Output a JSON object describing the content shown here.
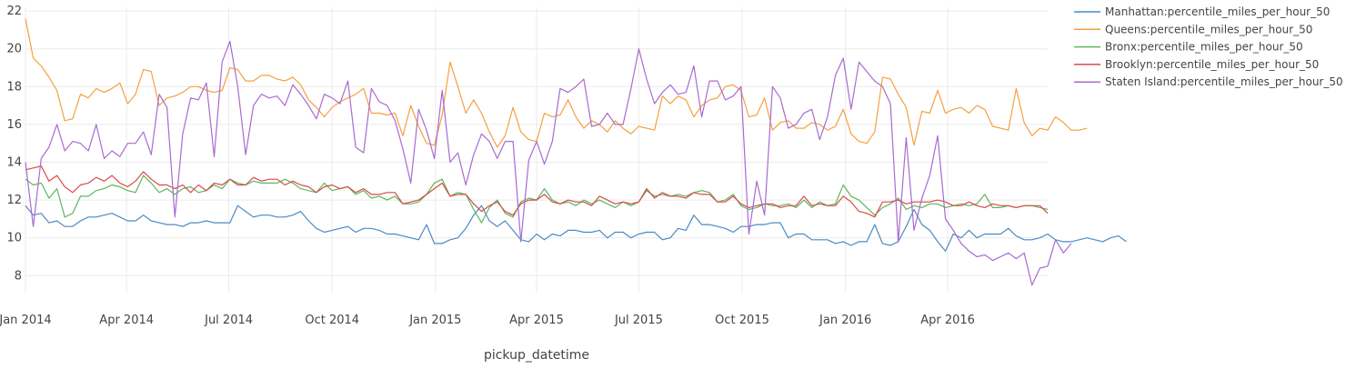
{
  "chart_data": {
    "type": "line",
    "title": "",
    "xlabel": "pickup_datetime",
    "ylabel": "",
    "x_range": [
      "2014-01-01",
      "2016-06-29"
    ],
    "ylim": [
      7.1,
      22.2
    ],
    "grid": true,
    "legend_position": "top-right",
    "x_ticks": [
      {
        "date": "2014-01-01",
        "label": "Jan 2014"
      },
      {
        "date": "2014-04-01",
        "label": "Apr 2014"
      },
      {
        "date": "2014-07-01",
        "label": "Jul 2014"
      },
      {
        "date": "2014-10-01",
        "label": "Oct 2014"
      },
      {
        "date": "2015-01-01",
        "label": "Jan 2015"
      },
      {
        "date": "2015-04-01",
        "label": "Apr 2015"
      },
      {
        "date": "2015-07-01",
        "label": "Jul 2015"
      },
      {
        "date": "2015-10-01",
        "label": "Oct 2015"
      },
      {
        "date": "2016-01-01",
        "label": "Jan 2016"
      },
      {
        "date": "2016-04-01",
        "label": "Apr 2016"
      }
    ],
    "y_ticks": [
      8,
      10,
      12,
      14,
      16,
      18,
      20,
      22
    ],
    "x_start": "2014-01-01",
    "x_step_days": 7,
    "series": [
      {
        "name": "Manhattan:percentile_miles_per_hour_50",
        "color": "#4a8ac4",
        "values": [
          11.7,
          11.2,
          11.3,
          10.8,
          10.9,
          10.6,
          10.6,
          10.9,
          11.1,
          11.1,
          11.2,
          11.3,
          11.1,
          10.9,
          10.9,
          11.2,
          10.9,
          10.8,
          10.7,
          10.7,
          10.6,
          10.8,
          10.8,
          10.9,
          10.8,
          10.8,
          10.8,
          11.7,
          11.4,
          11.1,
          11.2,
          11.2,
          11.1,
          11.1,
          11.2,
          11.4,
          10.9,
          10.5,
          10.3,
          10.4,
          10.5,
          10.6,
          10.3,
          10.5,
          10.5,
          10.4,
          10.2,
          10.2,
          10.1,
          10.0,
          9.9,
          10.7,
          9.7,
          9.7,
          9.9,
          10.0,
          10.5,
          11.2,
          11.7,
          10.9,
          10.6,
          10.9,
          10.4,
          9.9,
          9.8,
          10.2,
          9.9,
          10.2,
          10.1,
          10.4,
          10.4,
          10.3,
          10.3,
          10.4,
          10.0,
          10.3,
          10.3,
          10.0,
          10.2,
          10.3,
          10.3,
          9.9,
          10.0,
          10.5,
          10.4,
          11.2,
          10.7,
          10.7,
          10.6,
          10.5,
          10.3,
          10.6,
          10.6,
          10.7,
          10.7,
          10.8,
          10.8,
          10.0,
          10.2,
          10.2,
          9.9,
          9.9,
          9.9,
          9.7,
          9.8,
          9.6,
          9.8,
          9.8,
          10.7,
          9.7,
          9.6,
          9.8,
          10.6,
          11.5,
          10.7,
          10.4,
          9.8,
          9.3,
          10.2,
          10.0,
          10.4,
          10.0,
          10.2,
          10.2,
          10.2,
          10.5,
          10.1,
          9.9,
          9.9,
          10.0,
          10.2,
          9.9,
          9.8,
          9.8,
          9.9,
          10.0,
          9.9,
          9.8,
          10.0,
          10.1,
          9.8
        ]
      },
      {
        "name": "Queens:percentile_miles_per_hour_50",
        "color": "#f5a040",
        "values": [
          21.6,
          19.5,
          19.1,
          18.5,
          17.8,
          16.2,
          16.3,
          17.6,
          17.4,
          17.9,
          17.7,
          17.9,
          18.2,
          17.1,
          17.6,
          18.9,
          18.8,
          17.0,
          17.4,
          17.5,
          17.7,
          18.0,
          18.0,
          17.8,
          17.7,
          17.8,
          19.0,
          18.9,
          18.3,
          18.3,
          18.6,
          18.6,
          18.4,
          18.3,
          18.5,
          18.1,
          17.3,
          16.9,
          16.4,
          16.9,
          17.2,
          17.4,
          17.6,
          17.9,
          16.6,
          16.6,
          16.5,
          16.6,
          15.4,
          17.0,
          15.9,
          15.0,
          14.9,
          16.5,
          19.3,
          18.0,
          16.6,
          17.3,
          16.6,
          15.6,
          14.8,
          15.4,
          16.9,
          15.6,
          15.2,
          15.1,
          16.6,
          16.4,
          16.5,
          17.3,
          16.4,
          15.8,
          16.2,
          16.0,
          15.6,
          16.2,
          15.8,
          15.5,
          15.9,
          15.8,
          15.7,
          17.5,
          17.1,
          17.5,
          17.3,
          16.4,
          17.0,
          17.3,
          17.4,
          18.0,
          18.1,
          17.8,
          16.4,
          16.5,
          17.4,
          15.7,
          16.1,
          16.2,
          15.8,
          15.8,
          16.1,
          16.0,
          15.7,
          15.9,
          16.8,
          15.5,
          15.1,
          15.0,
          15.6,
          18.5,
          18.4,
          17.6,
          16.9,
          14.9,
          16.7,
          16.6,
          17.8,
          16.6,
          16.8,
          16.9,
          16.6,
          17.0,
          16.8,
          15.9,
          15.8,
          15.7,
          17.9,
          16.1,
          15.4,
          15.8,
          15.7,
          16.4,
          16.1,
          15.7,
          15.7,
          15.8
        ]
      },
      {
        "name": "Bronx:percentile_miles_per_hour_50",
        "color": "#5bb85b",
        "values": [
          13.1,
          12.8,
          12.9,
          12.1,
          12.6,
          11.1,
          11.3,
          12.2,
          12.2,
          12.5,
          12.6,
          12.8,
          12.7,
          12.5,
          12.4,
          13.3,
          12.9,
          12.4,
          12.6,
          12.3,
          12.6,
          12.7,
          12.4,
          12.5,
          12.8,
          12.6,
          13.1,
          12.9,
          12.8,
          13.0,
          12.9,
          12.9,
          12.9,
          13.1,
          12.9,
          12.6,
          12.5,
          12.4,
          12.9,
          12.5,
          12.6,
          12.7,
          12.3,
          12.5,
          12.1,
          12.2,
          12.0,
          12.2,
          11.8,
          11.8,
          11.9,
          12.3,
          12.9,
          13.1,
          12.2,
          12.4,
          12.3,
          11.5,
          10.8,
          11.6,
          12.0,
          11.3,
          11.1,
          11.9,
          12.1,
          12.0,
          12.6,
          12.0,
          11.8,
          11.9,
          11.7,
          12.0,
          11.8,
          12.0,
          11.8,
          11.6,
          11.9,
          11.7,
          11.9,
          12.5,
          12.2,
          12.3,
          12.2,
          12.3,
          12.2,
          12.4,
          12.5,
          12.4,
          11.9,
          12.0,
          12.3,
          11.7,
          11.5,
          11.6,
          11.8,
          11.7,
          11.7,
          11.8,
          11.6,
          12.0,
          11.6,
          11.9,
          11.7,
          11.8,
          12.8,
          12.2,
          12.0,
          11.6,
          11.2,
          11.6,
          11.8,
          12.1,
          11.5,
          11.7,
          11.6,
          11.8,
          11.8,
          11.6,
          11.7,
          11.8,
          11.7,
          11.8,
          12.3,
          11.6,
          11.6,
          11.7,
          11.6,
          11.7,
          11.7,
          11.6,
          11.5
        ]
      },
      {
        "name": "Brooklyn:percentile_miles_per_hour_50",
        "color": "#d94a4a",
        "values": [
          13.6,
          13.7,
          13.8,
          13.0,
          13.3,
          12.7,
          12.4,
          12.8,
          12.9,
          13.2,
          13.0,
          13.3,
          12.9,
          12.7,
          13.0,
          13.5,
          13.1,
          12.8,
          12.8,
          12.6,
          12.8,
          12.4,
          12.8,
          12.5,
          12.9,
          12.8,
          13.1,
          12.8,
          12.8,
          13.2,
          13.0,
          13.1,
          13.1,
          12.8,
          13.0,
          12.8,
          12.7,
          12.4,
          12.7,
          12.8,
          12.6,
          12.7,
          12.4,
          12.6,
          12.3,
          12.3,
          12.4,
          12.4,
          11.8,
          11.9,
          12.0,
          12.3,
          12.6,
          12.9,
          12.2,
          12.3,
          12.3,
          11.8,
          11.4,
          11.7,
          11.9,
          11.4,
          11.2,
          11.8,
          12.0,
          12.0,
          12.3,
          11.9,
          11.8,
          12.0,
          11.9,
          11.9,
          11.7,
          12.2,
          12.0,
          11.8,
          11.9,
          11.8,
          11.9,
          12.6,
          12.1,
          12.4,
          12.2,
          12.2,
          12.1,
          12.4,
          12.3,
          12.3,
          11.9,
          11.9,
          12.2,
          11.8,
          11.6,
          11.7,
          11.8,
          11.8,
          11.6,
          11.7,
          11.7,
          12.2,
          11.7,
          11.8,
          11.7,
          11.7,
          12.2,
          11.9,
          11.4,
          11.3,
          11.1,
          11.9,
          11.9,
          12.0,
          11.8,
          11.9,
          11.9,
          11.9,
          12.0,
          11.9,
          11.7,
          11.7,
          11.9,
          11.7,
          11.6,
          11.8,
          11.7,
          11.7,
          11.6,
          11.7,
          11.7,
          11.7,
          11.3
        ]
      },
      {
        "name": "Staten Island:percentile_miles_per_hour_50",
        "color": "#a86bd0",
        "values": [
          14.0,
          10.6,
          14.2,
          14.8,
          16.0,
          14.6,
          15.1,
          15.0,
          14.6,
          16.0,
          14.2,
          14.6,
          14.3,
          15.0,
          15.0,
          15.6,
          14.4,
          17.6,
          16.9,
          11.1,
          15.5,
          17.4,
          17.3,
          18.2,
          14.3,
          19.3,
          20.4,
          18.0,
          14.4,
          17.0,
          17.6,
          17.4,
          17.5,
          17.0,
          18.1,
          17.6,
          17.0,
          16.3,
          17.6,
          17.4,
          17.1,
          18.3,
          14.8,
          14.5,
          17.9,
          17.2,
          17.0,
          16.2,
          14.7,
          12.9,
          16.8,
          15.7,
          14.2,
          17.8,
          14.0,
          14.5,
          12.8,
          14.4,
          15.5,
          15.1,
          14.2,
          15.1,
          15.1,
          9.8,
          14.1,
          15.1,
          13.9,
          15.1,
          17.9,
          17.7,
          18.0,
          18.4,
          15.9,
          16.0,
          16.6,
          16.0,
          16.0,
          17.9,
          20.0,
          18.4,
          17.1,
          17.7,
          18.1,
          17.6,
          17.7,
          19.1,
          16.4,
          18.3,
          18.3,
          17.3,
          17.5,
          18.0,
          10.2,
          13.0,
          11.2,
          18.0,
          17.4,
          15.8,
          16.0,
          16.6,
          16.8,
          15.2,
          16.4,
          18.6,
          19.5,
          16.8,
          19.3,
          18.8,
          18.3,
          18.0,
          17.1,
          9.8,
          15.3,
          10.4,
          12.1,
          13.3,
          15.4,
          11.0,
          10.4,
          9.7,
          9.3,
          9.0,
          9.1,
          8.8,
          9.0,
          9.2,
          8.9,
          9.2,
          7.5,
          8.4,
          8.5,
          9.9,
          9.2,
          9.7
        ]
      }
    ]
  }
}
